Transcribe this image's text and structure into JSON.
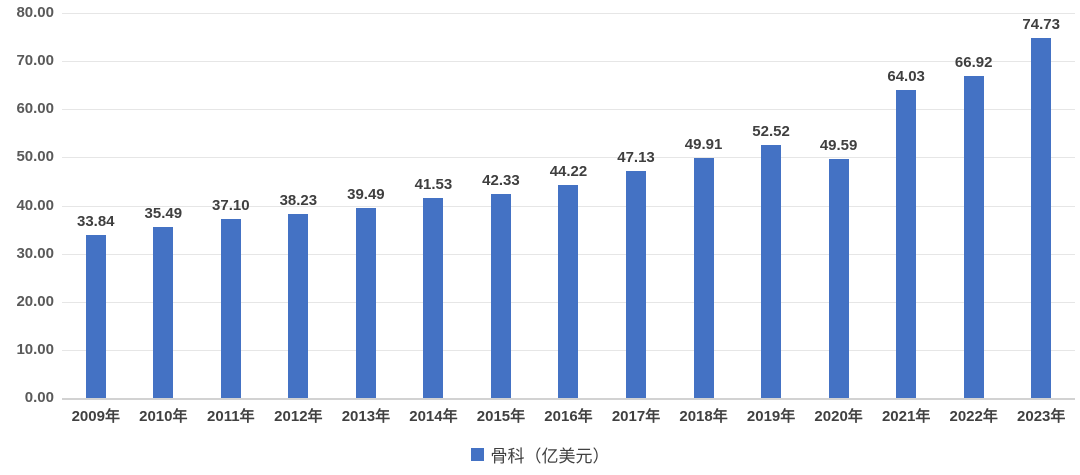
{
  "chart_data": {
    "type": "bar",
    "title": "",
    "categories": [
      "2009年",
      "2010年",
      "2011年",
      "2012年",
      "2013年",
      "2014年",
      "2015年",
      "2016年",
      "2017年",
      "2018年",
      "2019年",
      "2020年",
      "2021年",
      "2022年",
      "2023年"
    ],
    "values": [
      33.84,
      35.49,
      37.1,
      38.23,
      39.49,
      41.53,
      42.33,
      44.22,
      47.13,
      49.91,
      52.52,
      49.59,
      64.03,
      66.92,
      74.73
    ],
    "value_labels": [
      "33.84",
      "35.49",
      "37.10",
      "38.23",
      "39.49",
      "41.53",
      "42.33",
      "44.22",
      "47.13",
      "49.91",
      "52.52",
      "49.59",
      "64.03",
      "66.92",
      "74.73"
    ],
    "series": [
      {
        "name": "骨科（亿美元）",
        "values": [
          33.84,
          35.49,
          37.1,
          38.23,
          39.49,
          41.53,
          42.33,
          44.22,
          47.13,
          49.91,
          52.52,
          49.59,
          64.03,
          66.92,
          74.73
        ]
      }
    ],
    "xlabel": "",
    "ylabel": "",
    "ylim": [
      0,
      80
    ],
    "ytick_interval": 10,
    "ytick_labels": [
      "0.00",
      "10.00",
      "20.00",
      "30.00",
      "40.00",
      "50.00",
      "60.00",
      "70.00",
      "80.00"
    ],
    "grid": true,
    "legend_position": "bottom",
    "bar_color": "#4472c4",
    "data_label_color": "#3f3f3f",
    "axis_label_color": "#595959"
  },
  "legend": {
    "label": "骨科（亿美元）",
    "swatch_color": "#4472c4",
    "swatch_icon": "legend-square-icon"
  }
}
